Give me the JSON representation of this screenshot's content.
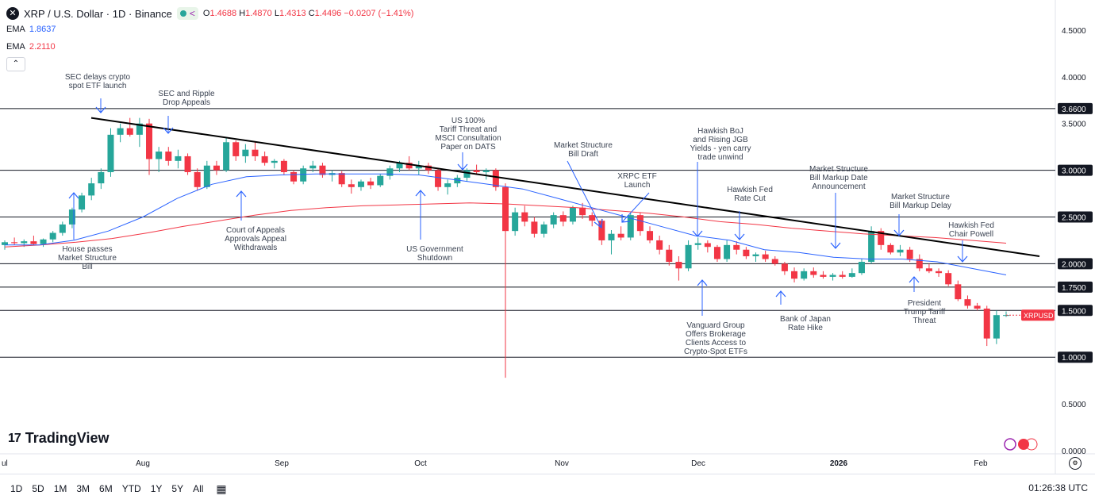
{
  "header": {
    "symbol_icon": "x-logo-icon",
    "title": "XRP / U.S. Dollar · 1D · Binance",
    "ohlc": {
      "open_label": "O",
      "open": "1.4688",
      "high_label": "H",
      "high": "1.4870",
      "low_label": "L",
      "low": "1.4313",
      "close_label": "C",
      "close": "1.4496",
      "change": "−0.0207 (−1.41%)"
    },
    "ema1": {
      "label": "EMA",
      "value": "1.8637",
      "color": "#2962ff"
    },
    "ema2": {
      "label": "EMA",
      "value": "2.2110",
      "color": "#f23645"
    }
  },
  "timeframes": [
    "1D",
    "5D",
    "1M",
    "3M",
    "6M",
    "YTD",
    "1Y",
    "5Y",
    "All"
  ],
  "clock": "01:26:38 UTC",
  "branding": "TradingView",
  "chart_data": {
    "type": "candlestick",
    "symbol_tag": "XRPUSD",
    "ylim": [
      0,
      4.75
    ],
    "y_ticks": [
      "4.5000",
      "4.0000",
      "3.5000",
      "3.0000",
      "2.5000",
      "2.0000",
      "1.5000",
      "1.0000",
      "0.5000",
      "0.0000"
    ],
    "highlighted_levels": [
      "3.6600",
      "1.7500"
    ],
    "x_ticks": [
      "ul",
      "Aug",
      "Sep",
      "Oct",
      "Nov",
      "Dec",
      "2026",
      "Feb"
    ],
    "horizontal_levels": [
      3.66,
      3.0,
      2.5,
      2.0,
      1.75,
      1.5,
      1.0
    ],
    "trendline": {
      "from": [
        3.56,
        "Jul 22"
      ],
      "to": [
        2.08,
        "Feb 10"
      ]
    },
    "ema_fast_points": [
      2.2,
      2.2,
      2.25,
      2.35,
      2.5,
      2.7,
      2.85,
      2.93,
      2.95,
      2.96,
      2.96,
      2.96,
      2.95,
      2.9,
      2.85,
      2.8,
      2.7,
      2.6,
      2.5,
      2.4,
      2.3,
      2.25,
      2.15,
      2.12,
      2.07,
      2.05,
      2.05,
      2.02,
      1.95,
      1.88
    ],
    "ema_slow_points": [
      2.18,
      2.2,
      2.23,
      2.27,
      2.33,
      2.4,
      2.46,
      2.52,
      2.57,
      2.6,
      2.62,
      2.63,
      2.64,
      2.65,
      2.64,
      2.62,
      2.6,
      2.57,
      2.54,
      2.5,
      2.45,
      2.42,
      2.38,
      2.35,
      2.32,
      2.3,
      2.28,
      2.25,
      2.22
    ],
    "candles": [
      [
        2.2,
        2.25,
        2.15,
        2.23
      ],
      [
        2.23,
        2.28,
        2.2,
        2.22
      ],
      [
        2.22,
        2.26,
        2.18,
        2.24
      ],
      [
        2.24,
        2.3,
        2.2,
        2.21
      ],
      [
        2.21,
        2.27,
        2.18,
        2.26
      ],
      [
        2.26,
        2.35,
        2.23,
        2.33
      ],
      [
        2.33,
        2.45,
        2.3,
        2.42
      ],
      [
        2.42,
        2.6,
        2.38,
        2.58
      ],
      [
        2.58,
        2.76,
        2.55,
        2.73
      ],
      [
        2.73,
        2.92,
        2.68,
        2.86
      ],
      [
        2.86,
        3.02,
        2.8,
        2.98
      ],
      [
        2.98,
        3.45,
        2.93,
        3.38
      ],
      [
        3.38,
        3.5,
        3.3,
        3.45
      ],
      [
        3.45,
        3.56,
        3.36,
        3.38
      ],
      [
        3.38,
        3.56,
        3.25,
        3.5
      ],
      [
        3.5,
        3.55,
        2.95,
        3.12
      ],
      [
        3.12,
        3.25,
        2.98,
        3.2
      ],
      [
        3.2,
        3.25,
        3.05,
        3.1
      ],
      [
        3.1,
        3.22,
        3.02,
        3.15
      ],
      [
        3.15,
        3.18,
        2.95,
        2.98
      ],
      [
        2.98,
        3.02,
        2.78,
        2.82
      ],
      [
        2.82,
        3.1,
        2.8,
        3.05
      ],
      [
        3.05,
        3.1,
        2.95,
        3.0
      ],
      [
        3.0,
        3.35,
        2.98,
        3.3
      ],
      [
        3.3,
        3.32,
        3.1,
        3.15
      ],
      [
        3.15,
        3.28,
        3.08,
        3.22
      ],
      [
        3.22,
        3.3,
        3.1,
        3.15
      ],
      [
        3.15,
        3.2,
        3.05,
        3.08
      ],
      [
        3.08,
        3.12,
        3.02,
        3.1
      ],
      [
        3.1,
        3.12,
        2.95,
        2.98
      ],
      [
        2.98,
        3.0,
        2.85,
        2.88
      ],
      [
        2.88,
        3.05,
        2.85,
        3.02
      ],
      [
        3.02,
        3.1,
        2.98,
        3.05
      ],
      [
        3.05,
        3.08,
        2.92,
        2.95
      ],
      [
        2.95,
        3.0,
        2.88,
        2.97
      ],
      [
        2.97,
        2.99,
        2.82,
        2.85
      ],
      [
        2.85,
        2.9,
        2.75,
        2.82
      ],
      [
        2.82,
        2.9,
        2.78,
        2.88
      ],
      [
        2.88,
        2.92,
        2.8,
        2.84
      ],
      [
        2.84,
        2.96,
        2.82,
        2.94
      ],
      [
        2.94,
        3.05,
        2.9,
        3.02
      ],
      [
        3.02,
        3.1,
        2.98,
        3.08
      ],
      [
        3.08,
        3.15,
        3.0,
        3.02
      ],
      [
        3.02,
        3.1,
        2.95,
        3.05
      ],
      [
        3.05,
        3.08,
        2.96,
        3.0
      ],
      [
        3.0,
        3.02,
        2.78,
        2.82
      ],
      [
        2.82,
        2.9,
        2.74,
        2.86
      ],
      [
        2.86,
        2.95,
        2.82,
        2.92
      ],
      [
        2.92,
        3.02,
        2.88,
        3.0
      ],
      [
        3.0,
        3.06,
        2.95,
        2.98
      ],
      [
        2.98,
        3.02,
        2.9,
        3.0
      ],
      [
        3.0,
        3.02,
        2.78,
        2.82
      ],
      [
        2.82,
        2.86,
        0.78,
        2.35
      ],
      [
        2.35,
        2.6,
        2.3,
        2.55
      ],
      [
        2.55,
        2.62,
        2.4,
        2.45
      ],
      [
        2.45,
        2.5,
        2.28,
        2.32
      ],
      [
        2.32,
        2.45,
        2.28,
        2.42
      ],
      [
        2.42,
        2.55,
        2.38,
        2.52
      ],
      [
        2.52,
        2.56,
        2.4,
        2.45
      ],
      [
        2.45,
        2.62,
        2.42,
        2.6
      ],
      [
        2.6,
        2.65,
        2.48,
        2.52
      ],
      [
        2.52,
        2.55,
        2.4,
        2.46
      ],
      [
        2.46,
        2.48,
        2.2,
        2.25
      ],
      [
        2.25,
        2.36,
        2.1,
        2.32
      ],
      [
        2.32,
        2.4,
        2.25,
        2.28
      ],
      [
        2.28,
        2.54,
        2.25,
        2.52
      ],
      [
        2.52,
        2.55,
        2.3,
        2.35
      ],
      [
        2.35,
        2.4,
        2.22,
        2.25
      ],
      [
        2.25,
        2.3,
        2.1,
        2.15
      ],
      [
        2.15,
        2.2,
        1.98,
        2.02
      ],
      [
        2.02,
        2.08,
        1.82,
        1.95
      ],
      [
        1.95,
        2.25,
        1.92,
        2.2
      ],
      [
        2.2,
        2.28,
        2.15,
        2.22
      ],
      [
        2.22,
        2.25,
        2.12,
        2.18
      ],
      [
        2.18,
        2.2,
        2.02,
        2.05
      ],
      [
        2.05,
        2.25,
        2.02,
        2.2
      ],
      [
        2.2,
        2.24,
        2.1,
        2.15
      ],
      [
        2.15,
        2.18,
        2.05,
        2.08
      ],
      [
        2.08,
        2.12,
        2.02,
        2.1
      ],
      [
        2.1,
        2.14,
        2.02,
        2.05
      ],
      [
        2.05,
        2.08,
        1.98,
        2.0
      ],
      [
        2.0,
        2.02,
        1.88,
        1.92
      ],
      [
        1.92,
        1.96,
        1.8,
        1.84
      ],
      [
        1.84,
        1.95,
        1.82,
        1.92
      ],
      [
        1.92,
        1.96,
        1.85,
        1.88
      ],
      [
        1.88,
        1.92,
        1.84,
        1.86
      ],
      [
        1.86,
        1.9,
        1.82,
        1.88
      ],
      [
        1.88,
        1.92,
        1.84,
        1.86
      ],
      [
        1.86,
        1.95,
        1.85,
        1.9
      ],
      [
        1.9,
        2.05,
        1.88,
        2.02
      ],
      [
        2.02,
        2.4,
        2.0,
        2.35
      ],
      [
        2.35,
        2.38,
        2.15,
        2.2
      ],
      [
        2.2,
        2.22,
        2.1,
        2.12
      ],
      [
        2.12,
        2.2,
        2.08,
        2.15
      ],
      [
        2.15,
        2.18,
        2.02,
        2.05
      ],
      [
        2.05,
        2.1,
        1.92,
        1.95
      ],
      [
        1.95,
        2.0,
        1.9,
        1.92
      ],
      [
        1.92,
        1.95,
        1.86,
        1.9
      ],
      [
        1.9,
        1.93,
        1.76,
        1.78
      ],
      [
        1.78,
        1.82,
        1.6,
        1.62
      ],
      [
        1.62,
        1.66,
        1.52,
        1.55
      ],
      [
        1.55,
        1.58,
        1.5,
        1.52
      ],
      [
        1.52,
        1.55,
        1.12,
        1.2
      ],
      [
        1.2,
        1.5,
        1.14,
        1.45
      ],
      [
        1.45,
        1.49,
        1.43,
        1.45
      ]
    ],
    "annotations": [
      {
        "id": "sec-delays",
        "lines": [
          "SEC delays crypto",
          "spot ETF launch"
        ]
      },
      {
        "id": "sec-ripple",
        "lines": [
          "SEC and Ripple",
          "Drop Appeals"
        ]
      },
      {
        "id": "us-tariff",
        "lines": [
          "US 100%",
          "Tariff Threat and",
          "MSCI Consultation",
          "Paper on DATS"
        ]
      },
      {
        "id": "ms-draft",
        "lines": [
          "Market Structure",
          "Bill Draft"
        ]
      },
      {
        "id": "xrpc",
        "lines": [
          "XRPC ETF",
          "Launch"
        ]
      },
      {
        "id": "boj-hawk",
        "lines": [
          "Hawkish BoJ",
          "and Rising JGB",
          "Yields - yen carry",
          "trade unwind"
        ]
      },
      {
        "id": "fed-cut",
        "lines": [
          "Hawkish Fed",
          "Rate Cut"
        ]
      },
      {
        "id": "ms-markup-date",
        "lines": [
          "Market Structure",
          "Bill Markup Date",
          "Announcement"
        ]
      },
      {
        "id": "ms-delay",
        "lines": [
          "Market Structure",
          "Bill Markup Delay"
        ]
      },
      {
        "id": "fed-powell",
        "lines": [
          "Hawkish Fed",
          "Chair Powell"
        ]
      },
      {
        "id": "house",
        "lines": [
          "House passes",
          "Market Structure",
          "Bill"
        ]
      },
      {
        "id": "court",
        "lines": [
          "Court of Appeals",
          "Approvals Appeal",
          "Withdrawals"
        ]
      },
      {
        "id": "shutdown",
        "lines": [
          "US Government",
          "Shutdown"
        ]
      },
      {
        "id": "vanguard",
        "lines": [
          "Vanguard Group",
          "Offers Brokerage",
          "Clients Access to",
          "Crypto-Spot ETFs"
        ]
      },
      {
        "id": "boj-hike",
        "lines": [
          "Bank of Japan",
          "Rate Hike"
        ]
      },
      {
        "id": "trump",
        "lines": [
          "President",
          "Trump Tariff",
          "Threat"
        ]
      }
    ]
  }
}
